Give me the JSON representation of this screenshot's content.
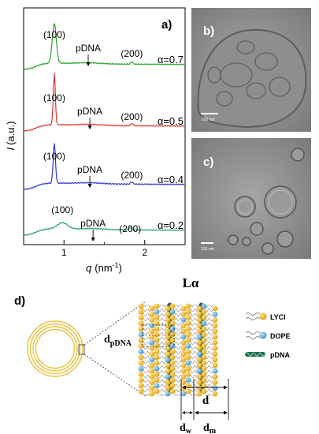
{
  "panel_labels": {
    "a": "a)",
    "b": "b)",
    "c": "c)",
    "d": "d)"
  },
  "chart_data": {
    "type": "line",
    "title": "",
    "xlabel_var": "q",
    "xlabel_unit_base": "nm",
    "xlabel_unit_exp": "-1",
    "ylabel": "(a.u.)",
    "ylabel_var": "I",
    "x_ticks": [
      "1",
      "2"
    ],
    "x_tick_values": [
      1,
      2
    ],
    "xlim": [
      0.5,
      2.5
    ],
    "offset_traces": true,
    "series": [
      {
        "name": "α=0.7",
        "color": "#2aa02a",
        "peak_100_q": 0.88,
        "peak_200_q": 1.84,
        "pDNA_q": 1.3,
        "peak_labels": {
          "p100": "(100)",
          "pDNA": "pDNA",
          "p200": "(200)"
        }
      },
      {
        "name": "α=0.5",
        "color": "#e0372f",
        "peak_100_q": 0.88,
        "peak_200_q": 1.84,
        "pDNA_q": 1.32,
        "peak_labels": {
          "p100": "(100)",
          "pDNA": "pDNA",
          "p200": "(200)"
        }
      },
      {
        "name": "α=0.4",
        "color": "#2f36d8",
        "peak_100_q": 0.88,
        "peak_200_q": 1.84,
        "pDNA_q": 1.32,
        "peak_labels": {
          "p100": "(100)",
          "pDNA": "pDNA",
          "p200": "(200)"
        }
      },
      {
        "name": "α=0.2",
        "color": "#2a9a82",
        "peak_100_q": 0.98,
        "peak_200_q": 1.82,
        "pDNA_q": 1.36,
        "peak_labels": {
          "p100": "(100)",
          "pDNA": "pDNA",
          "p200": "(200)"
        }
      }
    ]
  },
  "micrographs": {
    "b": {
      "scale": "200 nm"
    },
    "c": {
      "scale": "100 nm"
    }
  },
  "schematic": {
    "phase": "Lα",
    "d_pdna_main": "d",
    "d_pdna_sub": "pDNA",
    "d": "d",
    "d_w_main": "d",
    "d_w_sub": "w",
    "d_m_main": "d",
    "d_m_sub": "m",
    "legend": [
      {
        "label": "LYCl",
        "icon": "lycl-lipid-icon",
        "color": "#f2b21b"
      },
      {
        "label": "DOPE",
        "icon": "dope-lipid-icon",
        "color": "#5aa7d6"
      },
      {
        "label": "pDNA",
        "icon": "dna-helix-icon",
        "color": "#1f6b4a"
      }
    ],
    "colors": {
      "liposome": "#f0c24a",
      "lycl": "#f2b21b",
      "dope": "#5aa7d6",
      "dna": "#1f6b4a"
    }
  }
}
